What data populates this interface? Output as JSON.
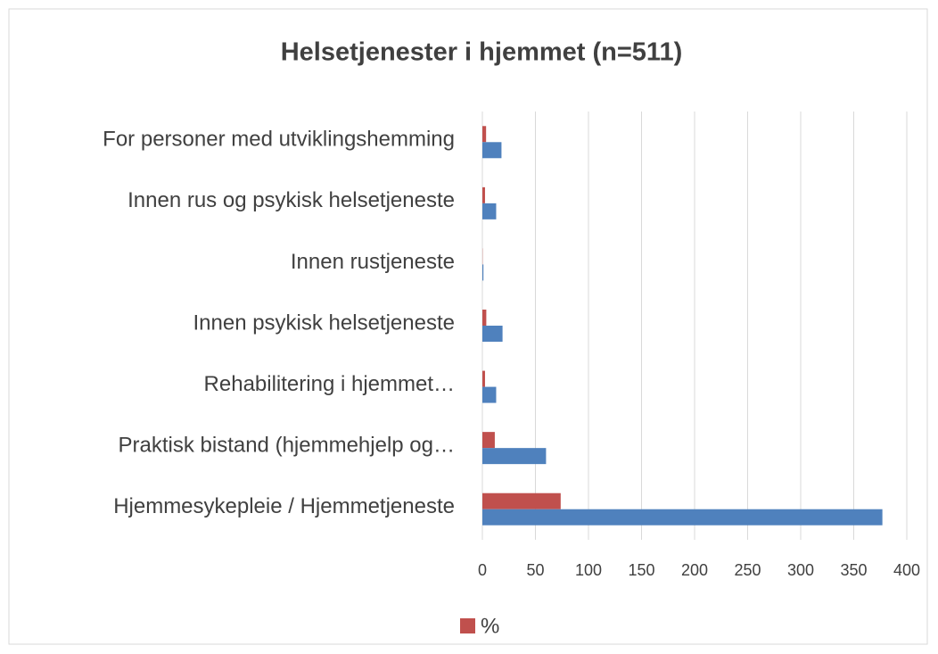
{
  "chart_data": {
    "type": "bar",
    "orientation": "horizontal",
    "title": "Helsetjenester i hjemmet (n=511)",
    "categories": [
      "For personer med utviklingshemming",
      "Innen rus og psykisk helsetjeneste",
      "Innen rustjeneste",
      "Innen psykisk helsetjeneste",
      "Rehabilitering i hjemmet…",
      "Praktisk bistand (hjemmehjelp og…",
      "Hjemmesykepleie / Hjemmetjeneste"
    ],
    "series": [
      {
        "name": "%",
        "color": "#c0504d",
        "values": [
          3.5,
          2.5,
          0.2,
          3.7,
          2.5,
          11.7,
          73.8
        ]
      },
      {
        "color": "#4f81bd",
        "values": [
          18,
          13,
          1,
          19,
          13,
          60,
          377
        ]
      }
    ],
    "xlim": [
      0,
      400
    ],
    "xticks": [
      0,
      50,
      100,
      150,
      200,
      250,
      300,
      350,
      400
    ],
    "grid": true,
    "legend": "bottom"
  }
}
